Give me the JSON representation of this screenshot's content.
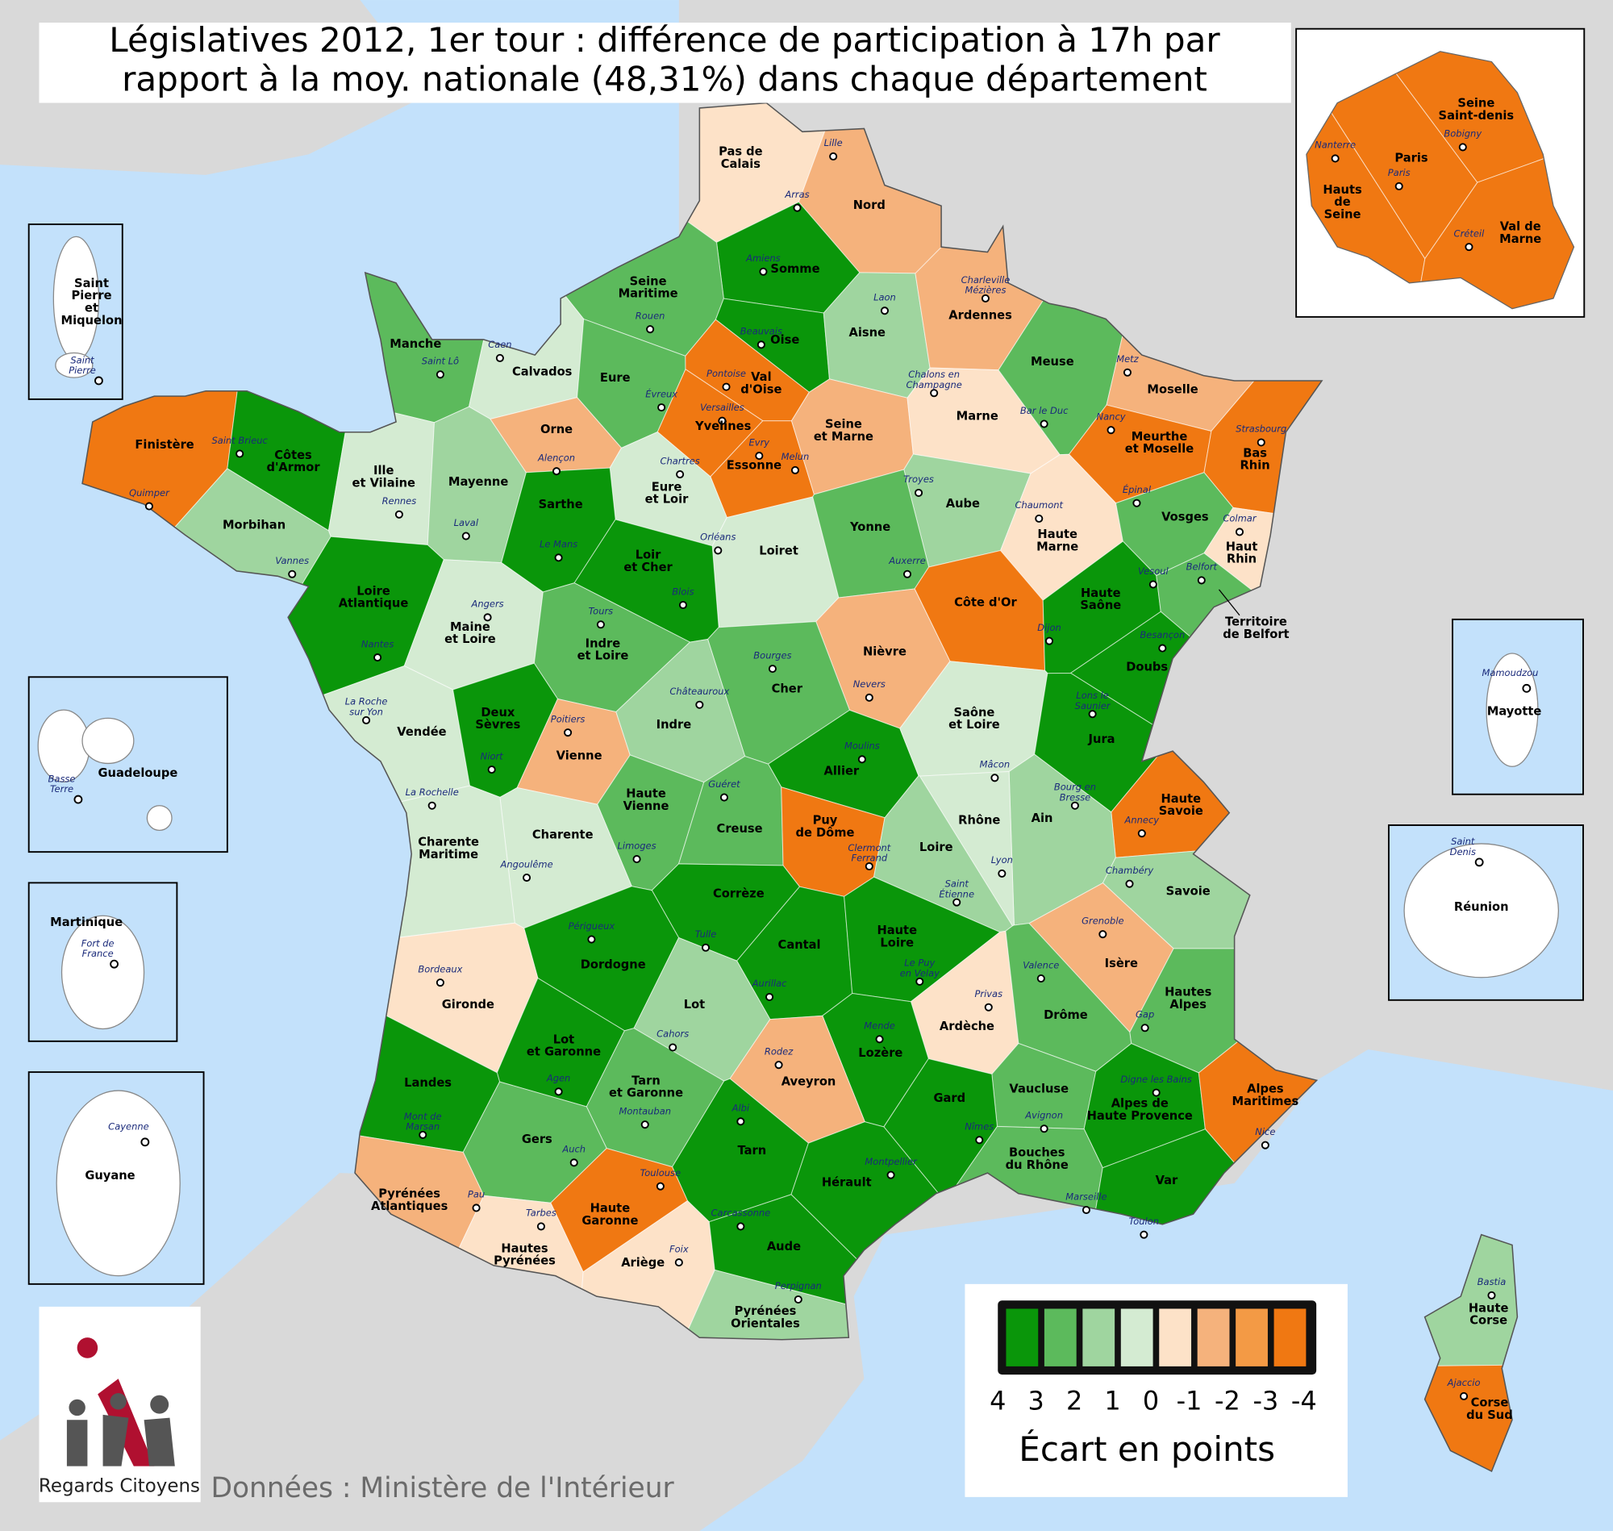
{
  "title": [
    "Législatives 2012, 1er tour : différence de participation à 17h par",
    "rapport à la moy. nationale (48,31%) dans chaque département"
  ],
  "legend": {
    "title": "Écart en points",
    "ticks": [
      4,
      3,
      2,
      1,
      0,
      -1,
      -2,
      -3,
      -4
    ],
    "colors": [
      "#0a960a",
      "#5cba5c",
      "#9fd59f",
      "#d4ebd2",
      "#fde2c8",
      "#f5b27c",
      "#f39a45",
      "#f07812"
    ]
  },
  "source": "Données : Ministère de l'Intérieur",
  "logo": "Regards Citoyens",
  "departments": [
    {
      "name": "Pas de\nCalais",
      "prefecture": "Arras",
      "value": -0.5
    },
    {
      "name": "Nord",
      "prefecture": "Lille",
      "value": -1.5
    },
    {
      "name": "Somme",
      "prefecture": "Amiens",
      "value": 3.5
    },
    {
      "name": "Seine\nMaritime",
      "prefecture": "Rouen",
      "value": 2.5
    },
    {
      "name": "Oise",
      "prefecture": "Beauvais",
      "value": 3.5
    },
    {
      "name": "Aisne",
      "prefecture": "Laon",
      "value": 1.5
    },
    {
      "name": "Ardennes",
      "prefecture": "Charleville\nMézières",
      "value": -1.5
    },
    {
      "name": "Manche",
      "prefecture": "Saint Lô",
      "value": 2.5
    },
    {
      "name": "Calvados",
      "prefecture": "Caen",
      "value": 0.5
    },
    {
      "name": "Eure",
      "prefecture": "Évreux",
      "value": 2.5
    },
    {
      "name": "Val\nd'Oise",
      "prefecture": "Pontoise",
      "value": -3.5
    },
    {
      "name": "Yvelines",
      "prefecture": "Versailles",
      "value": -3.5
    },
    {
      "name": "Essonne",
      "prefecture": "Evry",
      "value": -3.5
    },
    {
      "name": "Seine\net Marne",
      "prefecture": "Melun",
      "value": -1.5
    },
    {
      "name": "Marne",
      "prefecture": "Chalons en\nChampagne",
      "value": -0.5
    },
    {
      "name": "Meuse",
      "prefecture": "Bar le Duc",
      "value": 2.5
    },
    {
      "name": "Moselle",
      "prefecture": "Metz",
      "value": -1.5
    },
    {
      "name": "Meurthe\net Moselle",
      "prefecture": "Nancy",
      "value": -3.5
    },
    {
      "name": "Bas\nRhin",
      "prefecture": "Strasbourg",
      "value": -3.5
    },
    {
      "name": "Finistère",
      "prefecture": "Quimper",
      "value": -3.5
    },
    {
      "name": "Côtes\nd'Armor",
      "prefecture": "Saint Brieuc",
      "value": 3.5
    },
    {
      "name": "Ille\net Vilaine",
      "prefecture": "Rennes",
      "value": 0.5
    },
    {
      "name": "Mayenne",
      "prefecture": "Laval",
      "value": 1.5
    },
    {
      "name": "Orne",
      "prefecture": "Alençon",
      "value": -1.5
    },
    {
      "name": "Eure\net Loir",
      "prefecture": "Chartres",
      "value": 0.5
    },
    {
      "name": "Aube",
      "prefecture": "Troyes",
      "value": 1.5
    },
    {
      "name": "Haute\nMarne",
      "prefecture": "Chaumont",
      "value": -0.5
    },
    {
      "name": "Vosges",
      "prefecture": "Épinal",
      "value": 2.5
    },
    {
      "name": "Haut\nRhin",
      "prefecture": "Colmar",
      "value": -0.5
    },
    {
      "name": "Morbihan",
      "prefecture": "Vannes",
      "value": 1.5
    },
    {
      "name": "Sarthe",
      "prefecture": "Le Mans",
      "value": 3.5
    },
    {
      "name": "Loiret",
      "prefecture": "Orléans",
      "value": 0.5
    },
    {
      "name": "Yonne",
      "prefecture": "Auxerre",
      "value": 2.5
    },
    {
      "name": "Loire\nAtlantique",
      "prefecture": "Nantes",
      "value": 3.5
    },
    {
      "name": "Loir\net Cher",
      "prefecture": "Blois",
      "value": 3.5
    },
    {
      "name": "Maine\net Loire",
      "prefecture": "Angers",
      "value": 0.5
    },
    {
      "name": "Indre\net Loire",
      "prefecture": "Tours",
      "value": 2.5
    },
    {
      "name": "Côte d'Or",
      "prefecture": "Dijon",
      "value": -3.5
    },
    {
      "name": "Haute\nSaône",
      "prefecture": "Vesoul",
      "value": 3.5
    },
    {
      "name": "Territoire\nde Belfort",
      "prefecture": "Belfort",
      "value": 2.5
    },
    {
      "name": "Doubs",
      "prefecture": "Besançon",
      "value": 3.5
    },
    {
      "name": "Nièvre",
      "prefecture": "Nevers",
      "value": -1.5
    },
    {
      "name": "Cher",
      "prefecture": "Bourges",
      "value": 2.5
    },
    {
      "name": "Vendée",
      "prefecture": "La Roche\nsur Yon",
      "value": 0.5
    },
    {
      "name": "Deux\nSèvres",
      "prefecture": "Niort",
      "value": 3.5
    },
    {
      "name": "Vienne",
      "prefecture": "Poitiers",
      "value": -1.5
    },
    {
      "name": "Indre",
      "prefecture": "Châteauroux",
      "value": 1.5
    },
    {
      "name": "Allier",
      "prefecture": "Moulins",
      "value": 3.5
    },
    {
      "name": "Saône\net Loire",
      "prefecture": "Mâcon",
      "value": 0.5
    },
    {
      "name": "Jura",
      "prefecture": "Lons le\nSaunier",
      "value": 3.5
    },
    {
      "name": "Haute\nSavoie",
      "prefecture": "Annecy",
      "value": -3.5
    },
    {
      "name": "Ain",
      "prefecture": "Bourg en\nBresse",
      "value": 1.5
    },
    {
      "name": "Haute\nVienne",
      "prefecture": "Limoges",
      "value": 2.5
    },
    {
      "name": "Creuse",
      "prefecture": "Guéret",
      "value": 2.5
    },
    {
      "name": "Charente",
      "prefecture": "Angoulême",
      "value": 0.5
    },
    {
      "name": "Charente\nMaritime",
      "prefecture": "La Rochelle",
      "value": 0.5
    },
    {
      "name": "Puy\nde Dôme",
      "prefecture": "Clermont\nFerrand",
      "value": -3.5
    },
    {
      "name": "Rhône",
      "prefecture": "Lyon",
      "value": 0.5
    },
    {
      "name": "Loire",
      "prefecture": "Saint\nÉtienne",
      "value": 1.5
    },
    {
      "name": "Savoie",
      "prefecture": "Chambéry",
      "value": 1.5
    },
    {
      "name": "Corrèze",
      "prefecture": "Tulle",
      "value": 3.5
    },
    {
      "name": "Dordogne",
      "prefecture": "Périgueux",
      "value": 3.5
    },
    {
      "name": "Cantal",
      "prefecture": "Aurillac",
      "value": 3.5
    },
    {
      "name": "Haute\nLoire",
      "prefecture": "Le Puy\nen Velay",
      "value": 3.5
    },
    {
      "name": "Isère",
      "prefecture": "Grenoble",
      "value": -1.5
    },
    {
      "name": "Gironde",
      "prefecture": "Bordeaux",
      "value": -0.5
    },
    {
      "name": "Lot",
      "prefecture": "Cahors",
      "value": 1.5
    },
    {
      "name": "Ardèche",
      "prefecture": "Privas",
      "value": -0.5
    },
    {
      "name": "Drôme",
      "prefecture": "Valence",
      "value": 2.5
    },
    {
      "name": "Hautes\nAlpes",
      "prefecture": "Gap",
      "value": 2.5
    },
    {
      "name": "Lot\net Garonne",
      "prefecture": "Agen",
      "value": 3.5
    },
    {
      "name": "Lozère",
      "prefecture": "Mende",
      "value": 3.5
    },
    {
      "name": "Aveyron",
      "prefecture": "Rodez",
      "value": -1.5
    },
    {
      "name": "Landes",
      "prefecture": "Mont de\nMarsan",
      "value": 3.5
    },
    {
      "name": "Tarn\net Garonne",
      "prefecture": "Montauban",
      "value": 2.5
    },
    {
      "name": "Vaucluse",
      "prefecture": "Avignon",
      "value": 2.5
    },
    {
      "name": "Gard",
      "prefecture": "Nîmes",
      "value": 3.5
    },
    {
      "name": "Alpes de\nHaute Provence",
      "prefecture": "Digne les Bains",
      "value": 3.5
    },
    {
      "name": "Alpes\nMaritimes",
      "prefecture": "Nice",
      "value": -3.5
    },
    {
      "name": "Gers",
      "prefecture": "Auch",
      "value": 2.5
    },
    {
      "name": "Tarn",
      "prefecture": "Albi",
      "value": 3.5
    },
    {
      "name": "Hérault",
      "prefecture": "Montpellier",
      "value": 3.5
    },
    {
      "name": "Bouches\ndu Rhône",
      "prefecture": "Marseille",
      "value": 2.5
    },
    {
      "name": "Var",
      "prefecture": "Toulon",
      "value": 3.5
    },
    {
      "name": "Pyrénées\nAtlantiques",
      "prefecture": "Pau",
      "value": -1.5
    },
    {
      "name": "Haute\nGaronne",
      "prefecture": "Toulouse",
      "value": -3.5
    },
    {
      "name": "Hautes\nPyrénées",
      "prefecture": "Tarbes",
      "value": -0.5
    },
    {
      "name": "Ariège",
      "prefecture": "Foix",
      "value": -0.5
    },
    {
      "name": "Aude",
      "prefecture": "Carcassonne",
      "value": 3.5
    },
    {
      "name": "Pyrénées\nOrientales",
      "prefecture": "Perpignan",
      "value": 1.5
    },
    {
      "name": "Haute\nCorse",
      "prefecture": "Bastia",
      "value": 1.5
    },
    {
      "name": "Corse\ndu Sud",
      "prefecture": "Ajaccio",
      "value": -3.5
    }
  ],
  "ile_de_france": [
    {
      "name": "Hauts\nde\nSeine",
      "prefecture": "Nanterre",
      "value": -3.5
    },
    {
      "name": "Paris",
      "prefecture": "Paris",
      "value": -3.5
    },
    {
      "name": "Seine\nSaint-denis",
      "prefecture": "Bobigny",
      "value": -3.5
    },
    {
      "name": "Val de\nMarne",
      "prefecture": "Créteil",
      "value": -3.5
    }
  ],
  "overseas": [
    {
      "name": "Saint\nPierre\net\nMiquelon",
      "prefecture": "Saint\nPierre"
    },
    {
      "name": "Guadeloupe",
      "prefecture": "Basse\nTerre"
    },
    {
      "name": "Martinique",
      "prefecture": "Fort de\nFrance"
    },
    {
      "name": "Guyane",
      "prefecture": "Cayenne"
    },
    {
      "name": "Mayotte",
      "prefecture": "Mamoudzou"
    },
    {
      "name": "Réunion",
      "prefecture": "Saint\nDenis"
    }
  ]
}
